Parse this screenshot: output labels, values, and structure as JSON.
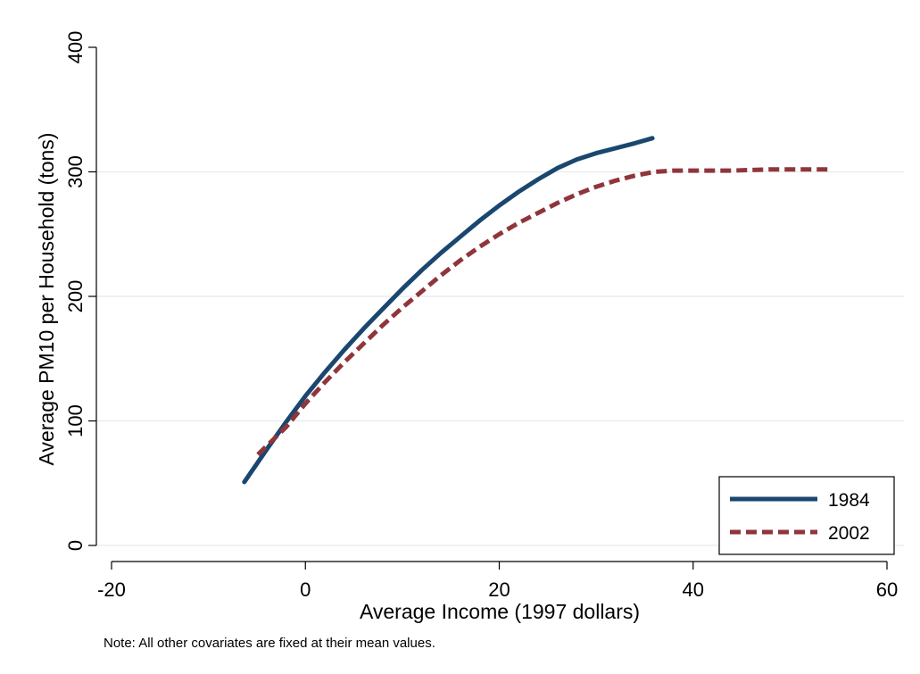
{
  "chart_data": {
    "type": "line",
    "title": "",
    "xlabel": "Average Income (1997 dollars)",
    "ylabel": "Average PM10 per Household (tons)",
    "note": "Note: All other covariates are fixed at their mean values.",
    "xlim": [
      -20,
      60
    ],
    "ylim": [
      0,
      400
    ],
    "xticks": [
      -20,
      0,
      20,
      40,
      60
    ],
    "yticks": [
      0,
      100,
      200,
      300,
      400
    ],
    "grid": true,
    "legend_position": "bottom-right",
    "series": [
      {
        "name": "1984",
        "color": "#1a476f",
        "dash": "solid",
        "points": [
          [
            -6.3,
            51
          ],
          [
            -4,
            77
          ],
          [
            -2,
            99
          ],
          [
            0,
            120
          ],
          [
            2,
            139
          ],
          [
            4,
            157
          ],
          [
            6,
            174
          ],
          [
            8,
            190
          ],
          [
            10,
            206
          ],
          [
            12,
            221
          ],
          [
            14,
            235
          ],
          [
            16,
            248
          ],
          [
            18,
            261
          ],
          [
            20,
            273
          ],
          [
            22,
            284
          ],
          [
            24,
            294
          ],
          [
            26,
            303
          ],
          [
            28,
            310
          ],
          [
            30,
            315
          ],
          [
            32,
            319
          ],
          [
            34,
            323
          ],
          [
            35.8,
            327
          ]
        ]
      },
      {
        "name": "2002",
        "color": "#90353b",
        "dash": "dashed",
        "points": [
          [
            -4.9,
            73
          ],
          [
            -2,
            95
          ],
          [
            0,
            114
          ],
          [
            2,
            131
          ],
          [
            4,
            147
          ],
          [
            6,
            162
          ],
          [
            8,
            177
          ],
          [
            10,
            191
          ],
          [
            12,
            204
          ],
          [
            14,
            217
          ],
          [
            16,
            229
          ],
          [
            18,
            240
          ],
          [
            20,
            250
          ],
          [
            22,
            259
          ],
          [
            24,
            267
          ],
          [
            26,
            275
          ],
          [
            28,
            282
          ],
          [
            30,
            288
          ],
          [
            32,
            293
          ],
          [
            34,
            297
          ],
          [
            36,
            300
          ],
          [
            38,
            301
          ],
          [
            40,
            301
          ],
          [
            44,
            301
          ],
          [
            48,
            302
          ],
          [
            54,
            302
          ]
        ]
      }
    ]
  }
}
